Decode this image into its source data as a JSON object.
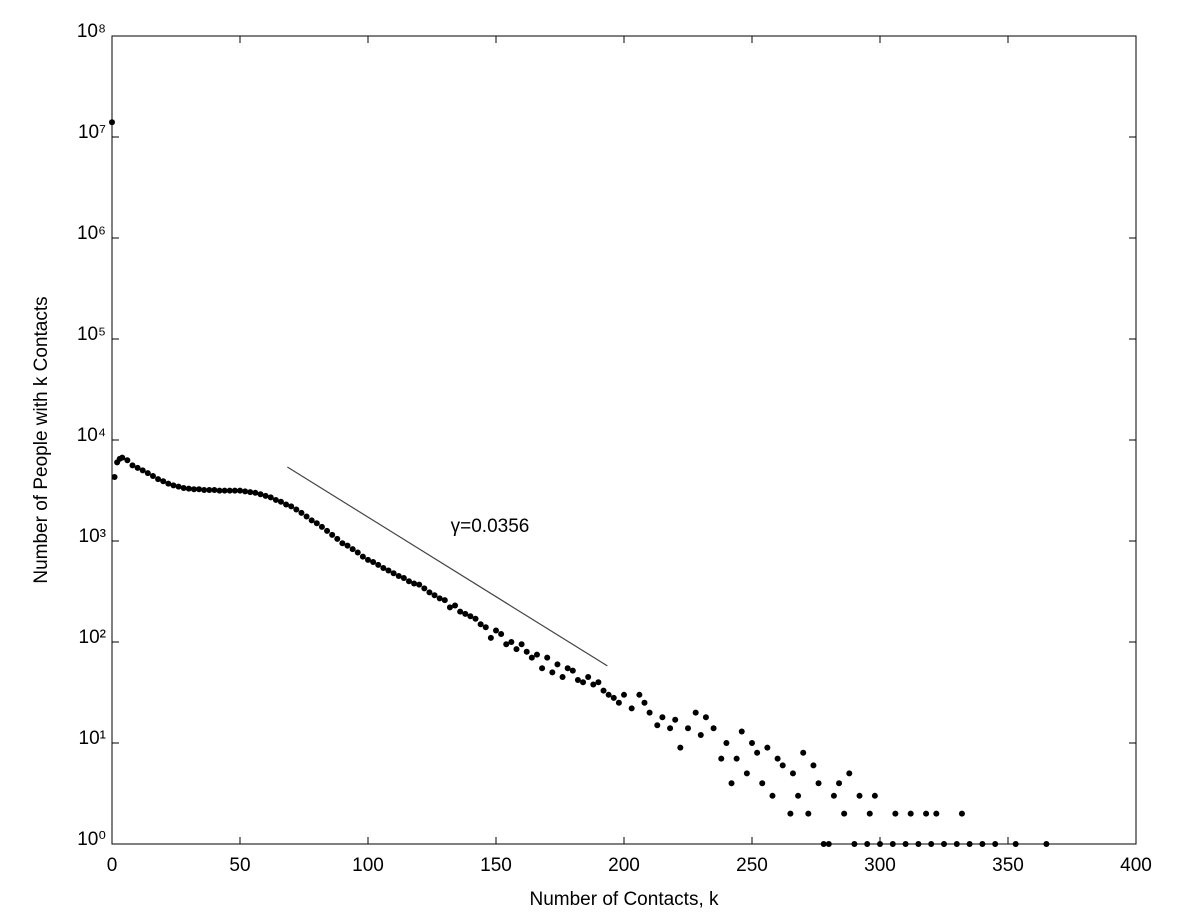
{
  "chart_data": {
    "type": "scatter",
    "x_label": "Number of Contacts, k",
    "y_label": "Number of People with k Contacts",
    "annotation": "γ=0.0356",
    "y_scale": "log",
    "color": "#000000",
    "xlim": [
      0,
      400
    ],
    "xticks": [
      0,
      50,
      100,
      150,
      200,
      250,
      300,
      350,
      400
    ],
    "ylim": [
      1,
      100000000
    ],
    "yticks": [
      {
        "value": 1,
        "label": "10⁰"
      },
      {
        "value": 10,
        "label": "10¹"
      },
      {
        "value": 100,
        "label": "10²"
      },
      {
        "value": 1000,
        "label": "10³"
      },
      {
        "value": 10000,
        "label": "10⁴"
      },
      {
        "value": 100000,
        "label": "10⁵"
      },
      {
        "value": 1000000,
        "label": "10⁶"
      },
      {
        "value": 10000000,
        "label": "10⁷"
      },
      {
        "value": 100000000,
        "label": "10⁸"
      }
    ],
    "fit_line": {
      "x": [
        68.5,
        193.5
      ],
      "y": [
        5400,
        58
      ]
    },
    "x": [
      0,
      1,
      2,
      3,
      4,
      6,
      8,
      10,
      12,
      14,
      16,
      18,
      20,
      22,
      24,
      26,
      28,
      30,
      32,
      34,
      36,
      38,
      40,
      42,
      44,
      46,
      48,
      50,
      52,
      54,
      56,
      58,
      60,
      62,
      64,
      66,
      68,
      70,
      72,
      74,
      76,
      78,
      80,
      82,
      84,
      86,
      88,
      90,
      92,
      94,
      96,
      98,
      100,
      102,
      104,
      106,
      108,
      110,
      112,
      114,
      116,
      118,
      120,
      122,
      124,
      126,
      128,
      130,
      132,
      134,
      136,
      138,
      140,
      142,
      144,
      146,
      148,
      150,
      152,
      154,
      156,
      158,
      160,
      162,
      164,
      166,
      168,
      170,
      172,
      174,
      176,
      178,
      180,
      182,
      184,
      186,
      188,
      190,
      192,
      194,
      196,
      198,
      200,
      203,
      206,
      208,
      210,
      213,
      215,
      218,
      220,
      222,
      225,
      228,
      230,
      232,
      235,
      238,
      240,
      242,
      244,
      246,
      248,
      250,
      252,
      254,
      256,
      258,
      260,
      262,
      265,
      266,
      268,
      270,
      272,
      274,
      276,
      278,
      280,
      282,
      284,
      286,
      288,
      290,
      292,
      295,
      296,
      298,
      300,
      305,
      306,
      310,
      312,
      315,
      318,
      320,
      322,
      325,
      330,
      332,
      335,
      340,
      345,
      353,
      365
    ],
    "values": [
      14000000,
      4300,
      6000,
      6500,
      6700,
      6300,
      5600,
      5300,
      5000,
      4700,
      4400,
      4100,
      3900,
      3700,
      3550,
      3450,
      3350,
      3300,
      3250,
      3250,
      3200,
      3200,
      3200,
      3150,
      3150,
      3150,
      3150,
      3150,
      3100,
      3050,
      3000,
      2900,
      2800,
      2700,
      2550,
      2450,
      2300,
      2200,
      2050,
      1900,
      1750,
      1600,
      1500,
      1380,
      1260,
      1150,
      1050,
      950,
      900,
      830,
      770,
      700,
      650,
      620,
      580,
      540,
      510,
      480,
      450,
      430,
      400,
      380,
      370,
      340,
      310,
      290,
      270,
      260,
      220,
      230,
      200,
      190,
      180,
      170,
      150,
      140,
      110,
      130,
      120,
      95,
      100,
      85,
      95,
      80,
      70,
      75,
      55,
      70,
      50,
      60,
      45,
      55,
      52,
      42,
      40,
      45,
      38,
      40,
      33,
      30,
      28,
      25,
      30,
      22,
      30,
      25,
      20,
      15,
      18,
      14,
      17,
      9,
      14,
      20,
      12,
      18,
      14,
      7,
      10,
      4,
      7,
      13,
      5,
      10,
      8,
      4,
      9,
      3,
      7,
      6,
      2,
      5,
      3,
      8,
      2,
      6,
      4,
      1,
      1,
      3,
      4,
      2,
      5,
      1,
      3,
      1,
      2,
      3,
      1,
      1,
      2,
      1,
      2,
      1,
      2,
      1,
      2,
      1,
      1,
      2,
      1,
      1,
      1,
      1,
      1
    ]
  }
}
